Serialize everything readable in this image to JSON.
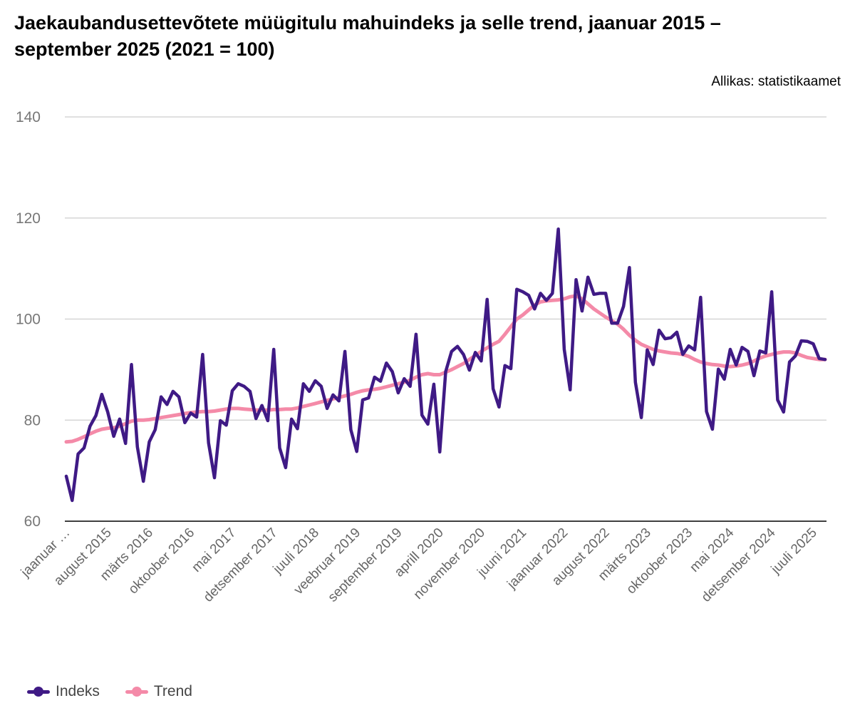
{
  "chart_data": {
    "type": "line",
    "title": "Jaekaubandusettevõtete müügitulu mahuindeks ja selle trend, jaanuar 2015 – september 2025 (2021 = 100)",
    "source": "Allikas: statistikaamet",
    "xlabel": "",
    "ylabel": "",
    "ylim": [
      60,
      140
    ],
    "yticks": [
      60,
      80,
      100,
      120,
      140
    ],
    "grid": true,
    "legend_position": "bottom-left",
    "x_start": "2015-01",
    "x_end": "2025-09",
    "xtick_labels": [
      "jaanuar …",
      "august 2015",
      "märts 2016",
      "oktoober 2016",
      "mai 2017",
      "detsember 2017",
      "juuli 2018",
      "veebruar 2019",
      "september 2019",
      "aprill 2020",
      "november 2020",
      "juuni 2021",
      "jaanuar 2022",
      "august 2022",
      "märts 2023",
      "oktoober 2023",
      "mai 2024",
      "detsember 2024",
      "juuli 2025"
    ],
    "series": [
      {
        "name": "Indeks",
        "color": "#3f1a85",
        "values": [
          68.9,
          64.1,
          73.3,
          74.5,
          78.8,
          80.9,
          85.1,
          81.6,
          76.8,
          80.2,
          75.4,
          91.0,
          74.7,
          67.9,
          75.7,
          78.1,
          84.6,
          83.1,
          85.7,
          84.6,
          79.5,
          81.4,
          80.6,
          93.0,
          75.5,
          68.6,
          79.9,
          79.0,
          85.8,
          87.2,
          86.7,
          85.7,
          80.3,
          82.9,
          79.9,
          94.0,
          74.5,
          70.6,
          80.2,
          78.3,
          87.2,
          85.7,
          87.8,
          86.7,
          82.3,
          85.0,
          83.8,
          93.6,
          78.1,
          73.8,
          84.0,
          84.4,
          88.5,
          87.7,
          91.3,
          89.6,
          85.4,
          88.2,
          86.7,
          97.0,
          81.0,
          79.2,
          87.1,
          73.7,
          89.6,
          93.6,
          94.6,
          93.0,
          89.9,
          93.4,
          91.7,
          103.9,
          86.2,
          82.6,
          90.8,
          90.2,
          105.9,
          105.4,
          104.7,
          102.0,
          105.1,
          103.7,
          105.1,
          117.8,
          94.0,
          86.0,
          107.8,
          101.6,
          108.3,
          104.9,
          105.1,
          105.1,
          99.2,
          99.2,
          102.5,
          110.2,
          87.5,
          80.5,
          93.9,
          91.0,
          97.8,
          96.1,
          96.3,
          97.4,
          93.0,
          94.7,
          93.9,
          104.3,
          81.7,
          78.2,
          90.1,
          88.1,
          94.0,
          90.9,
          94.4,
          93.6,
          88.8,
          93.7,
          93.3,
          105.4,
          84.0,
          81.6,
          91.5,
          92.7,
          95.7,
          95.6,
          95.1,
          92.2,
          92.0
        ]
      },
      {
        "name": "Trend",
        "color": "#f48aa8",
        "values": [
          75.7,
          75.8,
          76.2,
          76.7,
          77.3,
          77.8,
          78.2,
          78.4,
          78.5,
          78.8,
          79.3,
          79.8,
          80.0,
          80.0,
          80.1,
          80.3,
          80.5,
          80.7,
          80.9,
          81.1,
          81.3,
          81.5,
          81.6,
          81.7,
          81.7,
          81.8,
          82.0,
          82.2,
          82.3,
          82.3,
          82.2,
          82.1,
          82.0,
          82.0,
          82.0,
          82.1,
          82.1,
          82.2,
          82.2,
          82.4,
          82.7,
          83.0,
          83.3,
          83.6,
          83.9,
          84.2,
          84.5,
          84.8,
          85.1,
          85.5,
          85.8,
          86.0,
          86.1,
          86.3,
          86.6,
          86.9,
          87.2,
          87.5,
          87.9,
          88.5,
          89.0,
          89.2,
          89.0,
          89.0,
          89.5,
          90.0,
          90.6,
          91.2,
          92.0,
          92.8,
          93.6,
          94.3,
          95.0,
          95.6,
          97.0,
          98.5,
          100.0,
          100.8,
          101.8,
          102.8,
          103.4,
          103.6,
          103.7,
          103.8,
          104.0,
          104.4,
          104.6,
          104.0,
          103.0,
          102.0,
          101.2,
          100.4,
          99.7,
          99.0,
          98.0,
          96.8,
          95.8,
          95.0,
          94.5,
          94.0,
          93.7,
          93.5,
          93.3,
          93.2,
          93.0,
          92.6,
          92.0,
          91.5,
          91.2,
          91.0,
          90.9,
          90.7,
          90.6,
          90.7,
          90.9,
          91.2,
          91.7,
          92.3,
          92.7,
          93.0,
          93.3,
          93.5,
          93.5,
          93.3,
          92.8,
          92.4,
          92.2,
          92.0,
          92.0
        ]
      }
    ]
  }
}
